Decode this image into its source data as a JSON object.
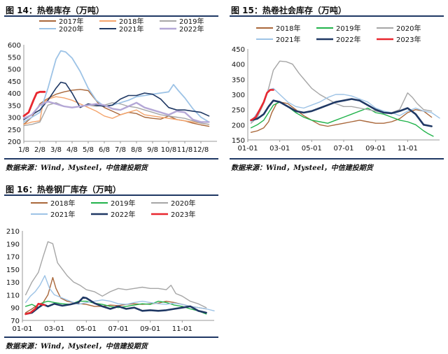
{
  "page": {
    "source_text": "数据来源：Wind，Mysteel，中信建投期货"
  },
  "chart_data": [
    {
      "id": "fig14",
      "type": "line",
      "title": "图 14：热卷库存（万吨）",
      "ylim": [
        200,
        600
      ],
      "yticks": [
        200,
        250,
        300,
        350,
        400,
        450,
        500,
        550,
        600
      ],
      "xticks": [
        [
          1,
          "1/8"
        ],
        [
          2,
          "2/8"
        ],
        [
          3,
          "3/8"
        ],
        [
          4,
          "4/8"
        ],
        [
          5,
          "5/8"
        ],
        [
          6,
          "6/8"
        ],
        [
          7,
          "7/8"
        ],
        [
          8,
          "8/8"
        ],
        [
          9,
          "9/8"
        ],
        [
          10,
          "10/8"
        ],
        [
          11,
          "11/8"
        ],
        [
          12,
          "12/8"
        ]
      ],
      "xlim": [
        1,
        13
      ],
      "legend_cols": 3,
      "series": [
        {
          "name": "2017年",
          "color": "#a9673a",
          "width": 1.4,
          "x": [
            1,
            1.5,
            2,
            2.3,
            2.7,
            3,
            3.5,
            4,
            4.5,
            5,
            5.3,
            5.6,
            6,
            6.5,
            7,
            7.5,
            8,
            8.5,
            9,
            9.5,
            10,
            10.5,
            11,
            11.5,
            12,
            12.5
          ],
          "y": [
            270,
            300,
            355,
            370,
            385,
            395,
            405,
            412,
            415,
            410,
            385,
            360,
            340,
            325,
            310,
            320,
            315,
            300,
            295,
            292,
            305,
            290,
            285,
            275,
            268,
            262
          ]
        },
        {
          "name": "2018年",
          "color": "#f4a46c",
          "width": 1.4,
          "x": [
            1,
            1.5,
            2,
            2.2,
            2.5,
            3,
            3.5,
            4,
            4.5,
            5,
            5.5,
            6,
            6.5,
            7,
            7.5,
            8,
            8.5,
            9,
            9.5,
            10,
            10.5,
            11,
            11.5,
            12,
            12.5
          ],
          "y": [
            270,
            280,
            285,
            360,
            375,
            385,
            380,
            370,
            355,
            340,
            325,
            305,
            295,
            310,
            320,
            330,
            310,
            305,
            300,
            295,
            290,
            285,
            280,
            275,
            270
          ]
        },
        {
          "name": "2019年",
          "color": "#a6a6a6",
          "width": 1.4,
          "x": [
            1,
            1.5,
            2,
            2.5,
            3,
            3.5,
            4,
            4.5,
            5,
            5.5,
            6,
            6.5,
            7,
            7.5,
            8,
            8.5,
            9,
            9.5,
            10,
            10.5,
            11,
            11.5,
            12,
            12.5
          ],
          "y": [
            265,
            270,
            280,
            350,
            360,
            345,
            340,
            345,
            350,
            345,
            350,
            360,
            355,
            345,
            340,
            330,
            320,
            310,
            305,
            300,
            295,
            285,
            275,
            270
          ]
        },
        {
          "name": "2020年",
          "color": "#9dc3e6",
          "width": 1.8,
          "x": [
            1,
            1.5,
            2,
            2.5,
            3,
            3.3,
            3.6,
            4,
            4.5,
            5,
            5.5,
            6,
            6.5,
            7,
            7.5,
            8,
            8.5,
            9,
            9.5,
            10,
            10.3,
            10.6,
            11,
            11.5,
            12,
            12.5
          ],
          "y": [
            280,
            300,
            320,
            420,
            540,
            575,
            570,
            545,
            490,
            420,
            370,
            345,
            350,
            360,
            370,
            385,
            390,
            395,
            400,
            405,
            435,
            410,
            380,
            335,
            300,
            280
          ]
        },
        {
          "name": "2021年",
          "color": "#1f3864",
          "width": 1.6,
          "x": [
            1,
            1.5,
            2,
            2.5,
            3,
            3.3,
            3.6,
            4,
            4.5,
            5,
            5.5,
            6,
            6.5,
            7,
            7.5,
            8,
            8.5,
            9,
            9.5,
            10,
            10.5,
            11,
            11.5,
            12,
            12.5
          ],
          "y": [
            290,
            310,
            330,
            370,
            420,
            445,
            440,
            400,
            340,
            355,
            350,
            345,
            350,
            375,
            390,
            390,
            400,
            395,
            375,
            340,
            330,
            330,
            325,
            320,
            305
          ]
        },
        {
          "name": "2022年",
          "color": "#b4a7d6",
          "width": 2.4,
          "x": [
            1,
            1.5,
            2,
            2.5,
            3,
            3.5,
            4,
            4.5,
            5,
            5.5,
            6,
            6.5,
            7,
            7.5,
            8,
            8.5,
            9,
            9.5,
            10,
            10.5,
            11,
            11.5,
            12,
            12.5
          ],
          "y": [
            295,
            310,
            350,
            365,
            355,
            345,
            340,
            345,
            350,
            355,
            350,
            335,
            330,
            345,
            360,
            340,
            330,
            320,
            310,
            325,
            320,
            290,
            280,
            280
          ]
        },
        {
          "name": "",
          "color": "#e8272f",
          "width": 2.8,
          "x": [
            1,
            1.3,
            1.6,
            1.8,
            2,
            2.3
          ],
          "y": [
            305,
            320,
            370,
            400,
            405,
            405
          ]
        }
      ]
    },
    {
      "id": "fig15",
      "type": "line",
      "title": "图 15：热卷社会库存（万吨）",
      "ylim": [
        150,
        450
      ],
      "yticks": [
        150,
        200,
        250,
        300,
        350,
        400,
        450
      ],
      "xticks": [
        [
          1,
          "01-01"
        ],
        [
          3,
          "03-01"
        ],
        [
          5,
          "05-01"
        ],
        [
          7,
          "07-01"
        ],
        [
          9,
          "09-01"
        ],
        [
          11,
          "11-01"
        ]
      ],
      "xlim": [
        1,
        13
      ],
      "legend_cols": 3,
      "series": [
        {
          "name": "2018年",
          "color": "#a9673a",
          "width": 1.4,
          "x": [
            1.2,
            1.6,
            2,
            2.3,
            2.5,
            2.8,
            3,
            3.5,
            4,
            4.5,
            5,
            5.5,
            6,
            6.5,
            7,
            7.5,
            8,
            8.5,
            9,
            9.5,
            10,
            10.5,
            11,
            11.5,
            12,
            12.5
          ],
          "y": [
            175,
            180,
            190,
            210,
            240,
            270,
            275,
            270,
            250,
            230,
            215,
            200,
            195,
            200,
            205,
            210,
            215,
            210,
            205,
            205,
            210,
            220,
            240,
            250,
            245,
            225
          ]
        },
        {
          "name": "2019年",
          "color": "#21b34b",
          "width": 1.4,
          "x": [
            1.2,
            1.6,
            2,
            2.3,
            2.6,
            3,
            3.5,
            4,
            4.5,
            5,
            5.5,
            6,
            6.5,
            7,
            7.5,
            8,
            8.5,
            9,
            9.5,
            10,
            10.5,
            11,
            11.5,
            12,
            12.3,
            12.6
          ],
          "y": [
            190,
            200,
            215,
            240,
            265,
            275,
            260,
            240,
            225,
            215,
            210,
            205,
            215,
            225,
            235,
            245,
            255,
            240,
            235,
            225,
            215,
            210,
            200,
            180,
            170,
            162
          ]
        },
        {
          "name": "2020年",
          "color": "#a6a6a6",
          "width": 1.4,
          "x": [
            1.2,
            1.6,
            2,
            2.3,
            2.6,
            3,
            3.4,
            3.8,
            4.2,
            4.6,
            5,
            5.5,
            6,
            6.5,
            7,
            7.5,
            8,
            8.5,
            9,
            9.5,
            10,
            10.5,
            11,
            11.3,
            11.6,
            12,
            12.5
          ],
          "y": [
            205,
            225,
            270,
            320,
            380,
            410,
            408,
            400,
            370,
            345,
            320,
            300,
            285,
            270,
            260,
            260,
            255,
            250,
            245,
            240,
            240,
            250,
            305,
            290,
            270,
            250,
            245
          ]
        },
        {
          "name": "2021年",
          "color": "#9dc3e6",
          "width": 1.4,
          "x": [
            1.2,
            1.6,
            2,
            2.3,
            2.6,
            3,
            3.5,
            4,
            4.5,
            5,
            5.5,
            6,
            6.5,
            7,
            7.5,
            8,
            8.5,
            9,
            9.5,
            10,
            10.5,
            11,
            11.5,
            12,
            12.5,
            13
          ],
          "y": [
            210,
            240,
            270,
            315,
            320,
            300,
            275,
            260,
            255,
            265,
            275,
            290,
            300,
            300,
            295,
            285,
            275,
            255,
            245,
            240,
            230,
            245,
            255,
            245,
            240,
            222
          ]
        },
        {
          "name": "2022年",
          "color": "#1f3864",
          "width": 2.6,
          "x": [
            1.2,
            1.6,
            2,
            2.3,
            2.6,
            3,
            3.5,
            4,
            4.5,
            5,
            5.5,
            6,
            6.5,
            7,
            7.5,
            8,
            8.5,
            9,
            9.5,
            10,
            10.5,
            11,
            11.5,
            12,
            12.5
          ],
          "y": [
            215,
            220,
            235,
            260,
            280,
            275,
            260,
            245,
            240,
            245,
            255,
            265,
            275,
            280,
            285,
            280,
            265,
            250,
            240,
            238,
            245,
            255,
            235,
            200,
            195
          ]
        },
        {
          "name": "2023年",
          "color": "#e8272f",
          "width": 2.6,
          "x": [
            1.2,
            1.5,
            1.8,
            2,
            2.2,
            2.4,
            2.6
          ],
          "y": [
            215,
            225,
            255,
            275,
            305,
            315,
            315
          ]
        }
      ]
    },
    {
      "id": "fig16",
      "type": "line",
      "title": "图 16：热卷钢厂库存（万吨）",
      "ylim": [
        70,
        210
      ],
      "yticks": [
        70,
        90,
        110,
        130,
        150,
        170,
        190,
        210
      ],
      "xticks": [
        [
          1,
          "01-01"
        ],
        [
          3,
          "03-01"
        ],
        [
          5,
          "05-01"
        ],
        [
          7,
          "07-01"
        ],
        [
          9,
          "09-01"
        ],
        [
          11,
          "11-01"
        ]
      ],
      "xlim": [
        1,
        13
      ],
      "legend_cols": 3,
      "series": [
        {
          "name": "2018年",
          "color": "#a9673a",
          "width": 1.4,
          "x": [
            1.2,
            1.6,
            2,
            2.3,
            2.6,
            2.9,
            3.1,
            3.4,
            3.8,
            4.2,
            4.6,
            5,
            5.5,
            6,
            6.5,
            7,
            7.5,
            8,
            8.5,
            9,
            9.5,
            10,
            10.5,
            11,
            11.5,
            12,
            12.5
          ],
          "y": [
            82,
            88,
            95,
            98,
            110,
            137,
            120,
            105,
            100,
            98,
            96,
            95,
            92,
            92,
            94,
            93,
            95,
            96,
            95,
            96,
            97,
            100,
            98,
            95,
            92,
            90,
            88
          ]
        },
        {
          "name": "2019年",
          "color": "#21b34b",
          "width": 1.4,
          "x": [
            1.2,
            1.6,
            2,
            2.3,
            2.6,
            3,
            3.5,
            4,
            4.5,
            5,
            5.5,
            6,
            6.5,
            7,
            7.5,
            8,
            8.5,
            9,
            9.5,
            10,
            10.5,
            11,
            11.5,
            12,
            12.5
          ],
          "y": [
            92,
            95,
            90,
            98,
            100,
            98,
            96,
            95,
            100,
            100,
            97,
            95,
            92,
            90,
            92,
            94,
            96,
            95,
            100,
            98,
            94,
            92,
            88,
            85,
            80
          ]
        },
        {
          "name": "2020年",
          "color": "#a6a6a6",
          "width": 1.4,
          "x": [
            1.2,
            1.6,
            2,
            2.3,
            2.6,
            2.9,
            3.2,
            3.5,
            3.8,
            4.2,
            4.6,
            5,
            5.5,
            6,
            6.5,
            7,
            7.5,
            8,
            8.5,
            9,
            9.5,
            10,
            10.3,
            10.6,
            11,
            11.5,
            12,
            12.5
          ],
          "y": [
            110,
            130,
            145,
            170,
            193,
            190,
            160,
            150,
            140,
            130,
            125,
            118,
            115,
            108,
            115,
            120,
            118,
            120,
            122,
            120,
            120,
            118,
            125,
            112,
            108,
            100,
            96,
            90
          ]
        },
        {
          "name": "2021年",
          "color": "#9dc3e6",
          "width": 1.4,
          "x": [
            1.2,
            1.5,
            1.8,
            2.1,
            2.4,
            2.7,
            3,
            3.5,
            4,
            4.5,
            5,
            5.5,
            6,
            6.5,
            7,
            7.5,
            8,
            8.5,
            9,
            9.5,
            10,
            10.5,
            11,
            11.5,
            12,
            12.5,
            13
          ],
          "y": [
            98,
            108,
            115,
            125,
            140,
            120,
            110,
            105,
            100,
            95,
            98,
            100,
            102,
            100,
            96,
            95,
            98,
            100,
            98,
            96,
            95,
            97,
            95,
            92,
            90,
            88,
            85
          ]
        },
        {
          "name": "2022年",
          "color": "#1f3864",
          "width": 2.6,
          "x": [
            1.2,
            1.6,
            2,
            2.3,
            2.6,
            3,
            3.5,
            4,
            4.5,
            4.8,
            5,
            5.5,
            6,
            6.5,
            7,
            7.5,
            8,
            8.5,
            9,
            9.5,
            10,
            10.5,
            11,
            11.5,
            12,
            12.5
          ],
          "y": [
            80,
            82,
            90,
            95,
            92,
            96,
            93,
            95,
            98,
            106,
            105,
            97,
            92,
            88,
            92,
            88,
            90,
            85,
            86,
            85,
            86,
            88,
            90,
            92,
            85,
            82
          ]
        },
        {
          "name": "2023年",
          "color": "#e8272f",
          "width": 2.6,
          "x": [
            1.2,
            1.5,
            1.8,
            2,
            2.2,
            2.4
          ],
          "y": [
            80,
            82,
            88,
            96,
            95,
            94
          ]
        }
      ]
    }
  ]
}
